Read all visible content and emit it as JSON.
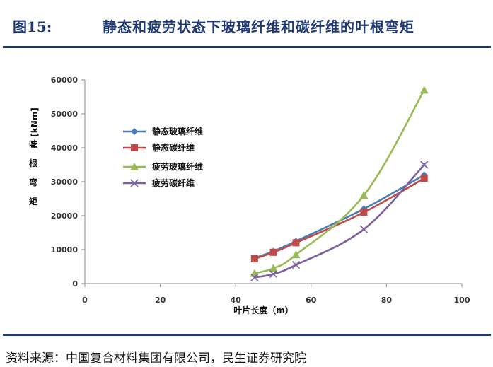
{
  "header": {
    "figure_number": "图15:",
    "title": "静态和疲劳状态下玻璃纤维和碳纤维的叶根弯矩"
  },
  "footer": {
    "source": "资料来源：中国复合材料集团有限公司，民生证券研究院"
  },
  "chart_data": {
    "type": "line",
    "title": "",
    "xlabel": "叶片长度（m）",
    "ylabel": "叶根弯矩",
    "ylabel_unit": "M [kNm]",
    "xlim": [
      0,
      100
    ],
    "ylim": [
      0,
      60000
    ],
    "x_ticks": [
      "0",
      "20",
      "40",
      "60",
      "80",
      "100"
    ],
    "y_ticks": [
      "0",
      "10000",
      "20000",
      "30000",
      "40000",
      "50000",
      "60000"
    ],
    "grid": false,
    "legend_position": "upper-left",
    "series": [
      {
        "name": "静态玻璃纤维",
        "color": "#4a7ebb",
        "marker": "diamond",
        "x": [
          45,
          50,
          56,
          74,
          90
        ],
        "y": [
          7500,
          9500,
          12500,
          22000,
          32000
        ]
      },
      {
        "name": "静态碳纤维",
        "color": "#be4b48",
        "marker": "square",
        "x": [
          45,
          50,
          56,
          74,
          90
        ],
        "y": [
          7300,
          9200,
          12000,
          21000,
          31000
        ]
      },
      {
        "name": "疲劳玻璃纤维",
        "color": "#98b954",
        "marker": "triangle",
        "x": [
          45,
          50,
          56,
          74,
          90
        ],
        "y": [
          3000,
          4500,
          8500,
          26000,
          57000
        ]
      },
      {
        "name": "疲劳碳纤维",
        "color": "#7d60a0",
        "marker": "x",
        "x": [
          45,
          50,
          56,
          74,
          90
        ],
        "y": [
          1800,
          2800,
          5500,
          16000,
          35000
        ]
      }
    ]
  }
}
